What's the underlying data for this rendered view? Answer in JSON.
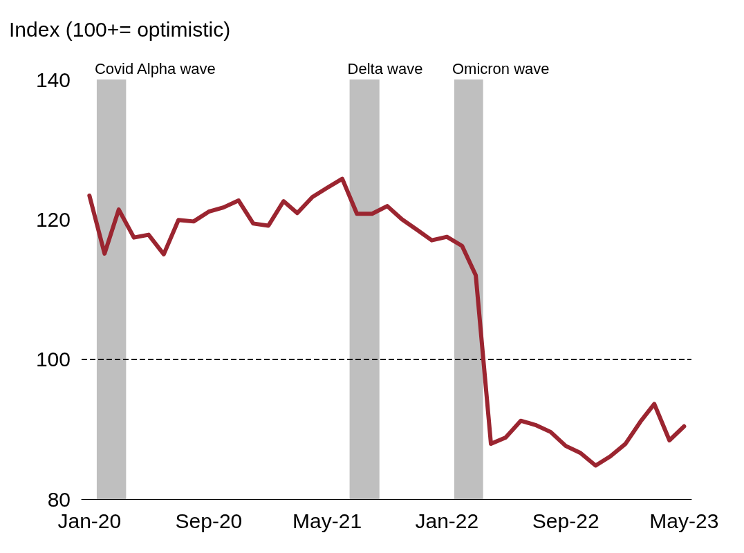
{
  "chart_data": {
    "type": "line",
    "ylabel": "Index (100+= optimistic)",
    "x": [
      "2020-01",
      "2020-02",
      "2020-03",
      "2020-04",
      "2020-05",
      "2020-06",
      "2020-07",
      "2020-08",
      "2020-09",
      "2020-10",
      "2020-11",
      "2020-12",
      "2021-01",
      "2021-02",
      "2021-03",
      "2021-04",
      "2021-05",
      "2021-06",
      "2021-07",
      "2021-08",
      "2021-09",
      "2021-10",
      "2021-11",
      "2021-12",
      "2022-01",
      "2022-02",
      "2022-03",
      "2022-04",
      "2022-05",
      "2022-06",
      "2022-07",
      "2022-08",
      "2022-09",
      "2022-10",
      "2022-11",
      "2022-12",
      "2023-01",
      "2023-02",
      "2023-03",
      "2023-04",
      "2023-05"
    ],
    "series": [
      {
        "color": "#9b2530",
        "values": [
          123.4,
          115.1,
          121.4,
          117.4,
          117.8,
          115.0,
          119.9,
          119.7,
          121.1,
          121.7,
          122.7,
          119.4,
          119.1,
          122.6,
          120.9,
          123.2,
          124.5,
          125.8,
          120.8,
          120.8,
          121.9,
          120.0,
          118.5,
          117.0,
          117.5,
          116.2,
          112.0,
          87.9,
          88.8,
          91.2,
          90.6,
          89.6,
          87.6,
          86.6,
          84.8,
          86.1,
          87.9,
          91.1,
          93.6,
          88.4,
          90.4
        ]
      }
    ],
    "xlim": [
      "2019-12-16",
      "2023-05-16"
    ],
    "xticks": [
      {
        "value": "2020-01",
        "label": "Jan-20"
      },
      {
        "value": "2020-09",
        "label": "Sep-20"
      },
      {
        "value": "2021-05",
        "label": "May-21"
      },
      {
        "value": "2022-01",
        "label": "Jan-22"
      },
      {
        "value": "2022-09",
        "label": "Sep-22"
      },
      {
        "value": "2023-05",
        "label": "May-23"
      }
    ],
    "ylim": [
      80,
      140
    ],
    "yticks": [
      80,
      100,
      120,
      140
    ],
    "ref_lines": [
      {
        "axis": "y",
        "value": 100,
        "color": "#000000",
        "line_style": "dashed"
      }
    ],
    "bands": [
      {
        "axis": "x",
        "from": "2020-01-16",
        "to": "2020-03-16",
        "label": "Covid Alpha wave",
        "color": "#bfbfbf"
      },
      {
        "axis": "x",
        "from": "2021-06-16",
        "to": "2021-08-16",
        "label": "Delta wave",
        "color": "#bfbfbf"
      },
      {
        "axis": "x",
        "from": "2022-01-16",
        "to": "2022-03-16",
        "label": "Omicron wave",
        "color": "#bfbfbf"
      }
    ],
    "grid": false,
    "marker": "none",
    "line_style": "solid"
  }
}
